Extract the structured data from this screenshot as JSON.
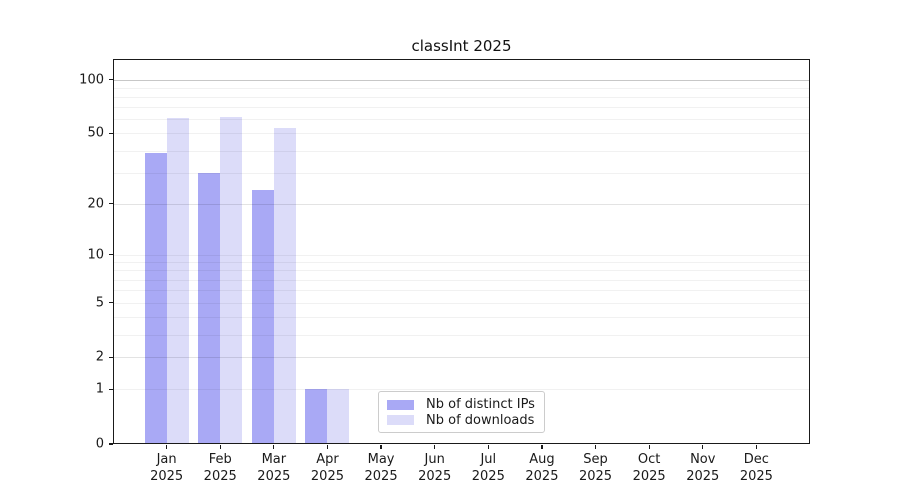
{
  "chart_data": {
    "type": "bar",
    "title": "classInt 2025",
    "categories": [
      "Jan",
      "Feb",
      "Mar",
      "Apr",
      "May",
      "Jun",
      "Jul",
      "Aug",
      "Sep",
      "Oct",
      "Nov",
      "Dec"
    ],
    "category_year": "2025",
    "series": [
      {
        "name": "Nb of distinct IPs",
        "color": "#a9a9f5",
        "values": [
          39,
          30,
          24,
          1,
          0,
          0,
          0,
          0,
          0,
          0,
          0,
          0
        ]
      },
      {
        "name": "Nb of downloads",
        "color": "#dcdcf9",
        "values": [
          61,
          62,
          54,
          1,
          0,
          0,
          0,
          0,
          0,
          0,
          0,
          0
        ]
      }
    ],
    "yscale": "log1p",
    "ylim": [
      0,
      130
    ],
    "yticks": [
      0,
      1,
      2,
      5,
      10,
      20,
      50,
      100
    ],
    "ytick_labels": [
      "0",
      "1",
      "2",
      "5",
      "10",
      "20",
      "50",
      "100"
    ],
    "minor_gridlines": [
      2,
      3,
      4,
      6,
      7,
      8,
      9,
      20,
      30,
      40,
      60,
      70,
      80,
      90
    ],
    "grid": "on",
    "legend_position": "lower center",
    "xlabel": "",
    "ylabel": ""
  }
}
